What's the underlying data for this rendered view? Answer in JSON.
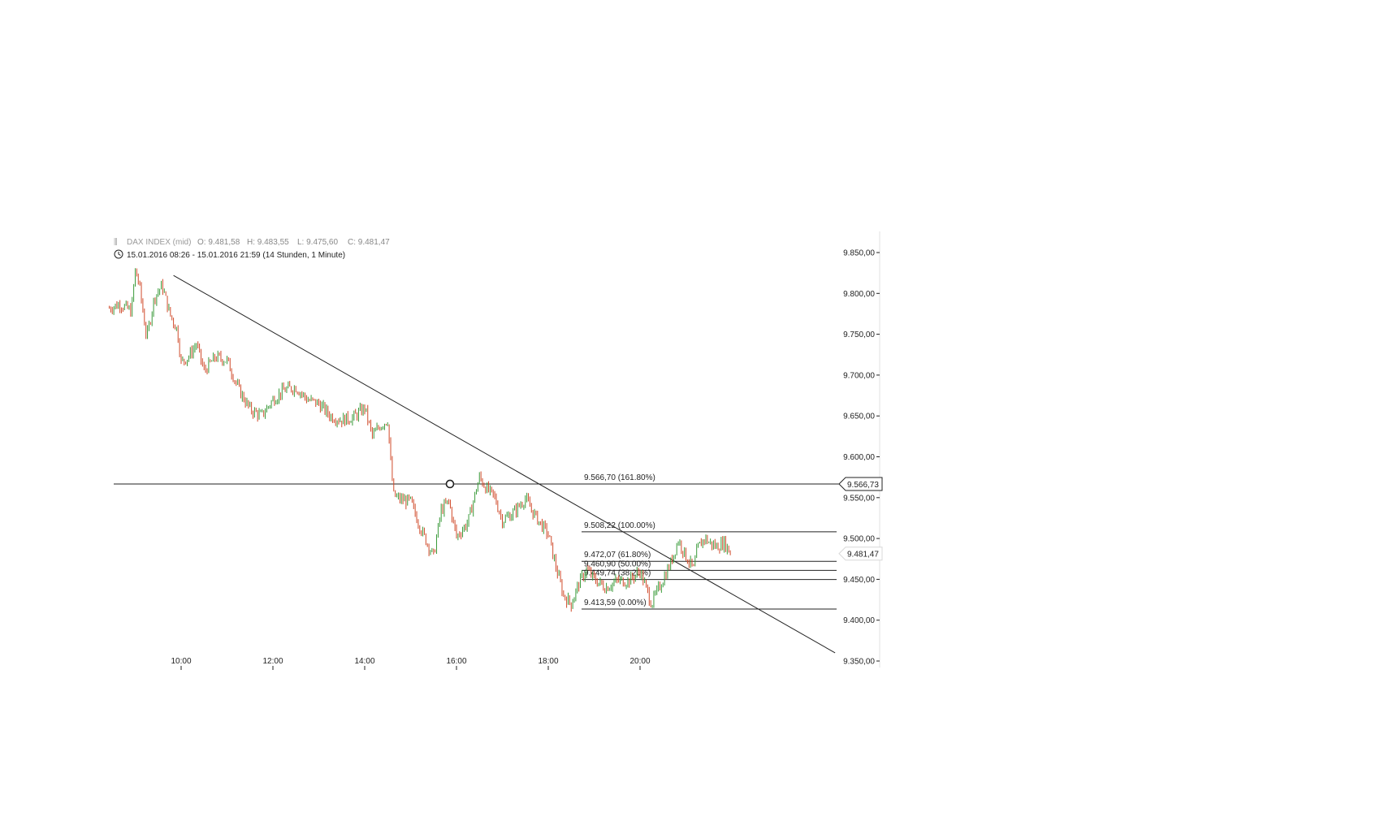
{
  "header": {
    "instrument": "DAX INDEX (mid)",
    "ohlc_o": "O: 9.481,58",
    "ohlc_h": "H: 9.483,55",
    "ohlc_l": "L: 9.475,60",
    "ohlc_c": "C: 9.481,47",
    "range": "15.01.2016 08:26 - 15.01.2016 21:59 (14 Stunden, 1 Minute)"
  },
  "chart_data": {
    "type": "line",
    "title": "",
    "xlabel": "",
    "ylabel": "",
    "x_ticks": [
      "10:00",
      "12:00",
      "14:00",
      "16:00",
      "18:00",
      "20:00"
    ],
    "y_ticks": [
      9350,
      9400,
      9450,
      9500,
      9550,
      9600,
      9650,
      9700,
      9750,
      9800,
      9850
    ],
    "y_tick_labels": [
      "9.350,00",
      "9.400,00",
      "9.450,00",
      "9.500,00",
      "9.550,00",
      "9.600,00",
      "9.650,00",
      "9.700,00",
      "9.750,00",
      "9.800,00",
      "9.850,00"
    ],
    "ylim": [
      9340,
      9860
    ],
    "xlim_hours": [
      "08:26",
      "24:30"
    ],
    "series": [
      {
        "values_time": [
          "08:26",
          "08:40",
          "08:55",
          "09:00",
          "09:05",
          "09:15",
          "09:25",
          "09:35",
          "09:45",
          "09:55",
          "10:00",
          "10:10",
          "10:20",
          "10:30",
          "10:45",
          "11:00",
          "11:15",
          "11:30",
          "11:45",
          "12:00",
          "12:15",
          "12:30",
          "12:45",
          "13:00",
          "13:15",
          "13:30",
          "13:45",
          "14:00",
          "14:10",
          "14:20",
          "14:30",
          "14:35",
          "14:38",
          "14:45",
          "15:00",
          "15:15",
          "15:30",
          "15:40",
          "15:50",
          "16:00",
          "16:15",
          "16:30",
          "16:40",
          "16:50",
          "17:00",
          "17:15",
          "17:30",
          "17:40",
          "17:50",
          "18:00",
          "18:10",
          "18:20",
          "18:30",
          "18:40",
          "18:50",
          "19:00",
          "19:15",
          "19:30",
          "19:45",
          "20:00",
          "20:15",
          "20:30",
          "20:40",
          "20:50",
          "21:00",
          "21:10",
          "21:15",
          "21:25",
          "21:30",
          "21:40",
          "21:50",
          "21:59"
        ],
        "values": [
          9782,
          9787,
          9778,
          9828,
          9812,
          9745,
          9795,
          9810,
          9775,
          9755,
          9715,
          9723,
          9738,
          9705,
          9722,
          9718,
          9683,
          9658,
          9650,
          9670,
          9682,
          9685,
          9670,
          9665,
          9650,
          9645,
          9648,
          9660,
          9625,
          9638,
          9645,
          9580,
          9553,
          9548,
          9545,
          9508,
          9478,
          9535,
          9545,
          9502,
          9520,
          9575,
          9560,
          9550,
          9522,
          9532,
          9549,
          9532,
          9518,
          9505,
          9465,
          9430,
          9420,
          9445,
          9462,
          9450,
          9440,
          9448,
          9448,
          9460,
          9420,
          9450,
          9470,
          9498,
          9478,
          9462,
          9488,
          9501,
          9495,
          9490,
          9495,
          9481
        ]
      }
    ],
    "horizontal_level": 9566.73,
    "last_price": 9481.47,
    "last_price_label": "9.481,47",
    "level_price_label": "9.566,73",
    "fibonacci": [
      {
        "price": 9566.7,
        "label": "9.566,70 (161.80%)"
      },
      {
        "price": 9508.22,
        "label": "9.508,22 (100.00%)"
      },
      {
        "price": 9472.07,
        "label": "9.472,07 (61.80%)"
      },
      {
        "price": 9460.9,
        "label": "9.460,90 (50.00%)"
      },
      {
        "price": 9449.74,
        "label": "9.449,74 (38.20%)"
      },
      {
        "price": 9413.59,
        "label": "9.413,59 (0.00%)"
      }
    ],
    "trendline": {
      "start_time": "09:50",
      "start_price": 9822,
      "end_time": "24:15",
      "end_price": 9360
    },
    "colors": {
      "up": "#3a9a3a",
      "down": "#d04a2a",
      "line": "#222222",
      "header_grey": "#999999"
    }
  }
}
